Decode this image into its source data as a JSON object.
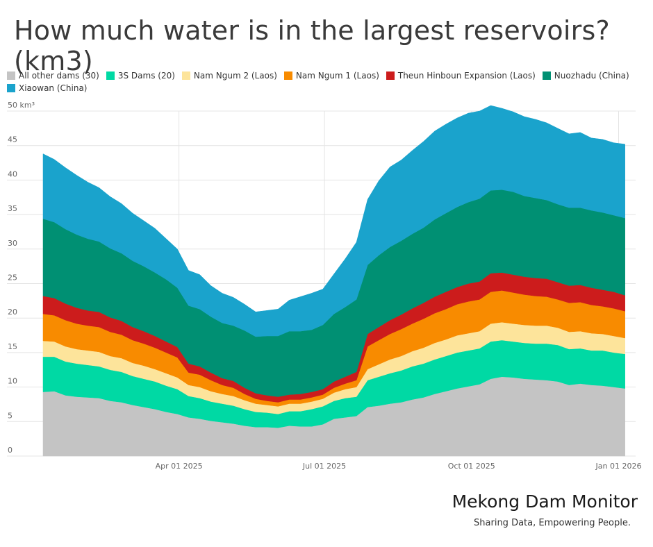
{
  "chart_data": {
    "type": "area",
    "stacked": true,
    "title": "How much water is in the largest reservoirs? (km3)",
    "ylabel_unit": "50 km³",
    "ylim": [
      0,
      50
    ],
    "yticks": [
      0,
      5,
      10,
      15,
      20,
      25,
      30,
      35,
      40,
      45
    ],
    "xlim": [
      "2025-01-06",
      "2026-01-06"
    ],
    "xticks": [
      {
        "date": "2025-04-01",
        "label": "Apr 01 2025"
      },
      {
        "date": "2025-07-01",
        "label": "Jul 01 2025"
      },
      {
        "date": "2025-10-01",
        "label": "Oct 01 2025"
      },
      {
        "date": "2026-01-01",
        "label": "Jan 01 2026"
      }
    ],
    "grid": true,
    "legend_position": "top",
    "dates": [
      "2025-01-06",
      "2025-01-13",
      "2025-01-20",
      "2025-01-27",
      "2025-02-03",
      "2025-02-10",
      "2025-02-17",
      "2025-02-24",
      "2025-03-03",
      "2025-03-10",
      "2025-03-17",
      "2025-03-24",
      "2025-03-31",
      "2025-04-07",
      "2025-04-14",
      "2025-04-21",
      "2025-04-28",
      "2025-05-05",
      "2025-05-12",
      "2025-05-19",
      "2025-05-26",
      "2025-06-02",
      "2025-06-09",
      "2025-06-16",
      "2025-06-23",
      "2025-06-30",
      "2025-07-07",
      "2025-07-14",
      "2025-07-21",
      "2025-07-28",
      "2025-08-04",
      "2025-08-11",
      "2025-08-18",
      "2025-08-25",
      "2025-09-01",
      "2025-09-08",
      "2025-09-15",
      "2025-09-22",
      "2025-09-29",
      "2025-10-06",
      "2025-10-13",
      "2025-10-20",
      "2025-10-27",
      "2025-11-03",
      "2025-11-10",
      "2025-11-17",
      "2025-11-24",
      "2025-12-01",
      "2025-12-08",
      "2025-12-15",
      "2025-12-22",
      "2025-12-29",
      "2026-01-05"
    ],
    "series": [
      {
        "name": "All other dams (30)",
        "color": "#c4c4c4",
        "values": [
          9.3,
          9.4,
          8.8,
          8.6,
          8.5,
          8.4,
          8.0,
          7.8,
          7.4,
          7.1,
          6.8,
          6.4,
          6.1,
          5.6,
          5.4,
          5.1,
          4.9,
          4.7,
          4.4,
          4.2,
          4.2,
          4.1,
          4.4,
          4.3,
          4.3,
          4.6,
          5.4,
          5.6,
          5.8,
          7.1,
          7.3,
          7.6,
          7.8,
          8.2,
          8.5,
          9.0,
          9.4,
          9.8,
          10.1,
          10.4,
          11.2,
          11.5,
          11.4,
          11.2,
          11.1,
          11.0,
          10.8,
          10.3,
          10.5,
          10.3,
          10.2,
          10.0,
          9.8
        ]
      },
      {
        "name": "3S Dams (20)",
        "color": "#00d9a4",
        "values": [
          5.1,
          5.0,
          4.9,
          4.8,
          4.7,
          4.6,
          4.5,
          4.4,
          4.2,
          4.1,
          4.0,
          3.8,
          3.6,
          3.1,
          3.0,
          2.8,
          2.7,
          2.6,
          2.4,
          2.2,
          2.1,
          2.0,
          2.1,
          2.2,
          2.5,
          2.6,
          2.6,
          2.8,
          2.8,
          3.9,
          4.2,
          4.4,
          4.6,
          4.8,
          4.9,
          5.0,
          5.1,
          5.2,
          5.2,
          5.2,
          5.4,
          5.3,
          5.2,
          5.2,
          5.2,
          5.3,
          5.3,
          5.2,
          5.1,
          5.0,
          5.1,
          5.0,
          5.0
        ]
      },
      {
        "name": "Nam Ngum 2 (Laos)",
        "color": "#fde49b",
        "values": [
          2.3,
          2.2,
          2.2,
          2.1,
          2.1,
          2.1,
          2.0,
          2.0,
          1.9,
          1.9,
          1.8,
          1.8,
          1.7,
          1.6,
          1.6,
          1.5,
          1.4,
          1.4,
          1.3,
          1.2,
          1.1,
          1.1,
          1.1,
          1.1,
          1.1,
          1.1,
          1.2,
          1.3,
          1.4,
          1.6,
          1.8,
          2.0,
          2.1,
          2.2,
          2.3,
          2.4,
          2.4,
          2.5,
          2.5,
          2.5,
          2.6,
          2.6,
          2.6,
          2.6,
          2.6,
          2.6,
          2.5,
          2.5,
          2.5,
          2.5,
          2.4,
          2.4,
          2.3
        ]
      },
      {
        "name": "Nam Ngum 1 (Laos)",
        "color": "#f88b00",
        "values": [
          3.9,
          3.8,
          3.8,
          3.7,
          3.6,
          3.6,
          3.5,
          3.4,
          3.3,
          3.2,
          3.1,
          3.0,
          2.9,
          1.8,
          1.8,
          1.6,
          1.3,
          1.2,
          0.9,
          0.7,
          0.6,
          0.6,
          0.6,
          0.6,
          0.6,
          0.6,
          0.7,
          0.8,
          1.0,
          3.3,
          3.5,
          3.7,
          3.9,
          4.0,
          4.2,
          4.3,
          4.4,
          4.5,
          4.6,
          4.6,
          4.6,
          4.6,
          4.5,
          4.4,
          4.3,
          4.2,
          4.1,
          4.2,
          4.2,
          4.1,
          4.0,
          4.0,
          3.9
        ]
      },
      {
        "name": "Theun Hinboun Expansion (Laos)",
        "color": "#cc1c1c",
        "values": [
          2.6,
          2.5,
          2.4,
          2.3,
          2.2,
          2.2,
          2.1,
          2.0,
          1.9,
          1.8,
          1.7,
          1.6,
          1.5,
          1.3,
          1.2,
          1.1,
          1.0,
          1.0,
          0.9,
          0.8,
          0.8,
          0.8,
          0.7,
          0.8,
          0.8,
          0.8,
          0.9,
          1.0,
          1.2,
          1.8,
          1.9,
          2.0,
          2.1,
          2.2,
          2.3,
          2.4,
          2.5,
          2.5,
          2.6,
          2.6,
          2.7,
          2.6,
          2.6,
          2.6,
          2.6,
          2.6,
          2.5,
          2.5,
          2.5,
          2.5,
          2.4,
          2.4,
          2.3
        ]
      },
      {
        "name": "Nuozhadu (China)",
        "color": "#009073",
        "values": [
          11.2,
          11.0,
          10.8,
          10.6,
          10.4,
          10.2,
          10.0,
          9.8,
          9.6,
          9.4,
          9.2,
          9.0,
          8.6,
          8.4,
          8.3,
          8.1,
          8.0,
          8.0,
          8.3,
          8.2,
          8.6,
          8.8,
          9.2,
          9.1,
          9.0,
          9.3,
          9.8,
          10.1,
          10.5,
          10.0,
          10.4,
          10.6,
          10.7,
          10.8,
          10.9,
          11.2,
          11.4,
          11.6,
          11.8,
          12.0,
          12.0,
          12.0,
          12.0,
          11.7,
          11.6,
          11.4,
          11.3,
          11.3,
          11.2,
          11.2,
          11.2,
          11.1,
          11.2
        ]
      },
      {
        "name": "Xiaowan (China)",
        "color": "#1aa3cc",
        "values": [
          9.4,
          9.1,
          8.9,
          8.6,
          8.2,
          7.8,
          7.5,
          7.2,
          6.9,
          6.6,
          6.4,
          5.9,
          5.6,
          5.1,
          5.0,
          4.5,
          4.3,
          4.1,
          3.8,
          3.6,
          3.7,
          3.9,
          4.5,
          5.0,
          5.3,
          5.2,
          5.8,
          7.0,
          8.3,
          9.5,
          10.8,
          11.6,
          11.7,
          12.1,
          12.5,
          12.8,
          12.9,
          12.9,
          12.9,
          12.7,
          12.3,
          11.8,
          11.6,
          11.5,
          11.4,
          11.2,
          11.0,
          10.7,
          10.9,
          10.5,
          10.6,
          10.5,
          10.7
        ]
      }
    ]
  },
  "branding": {
    "name": "Mekong Dam Monitor",
    "tagline": "Sharing Data, Empowering People."
  }
}
